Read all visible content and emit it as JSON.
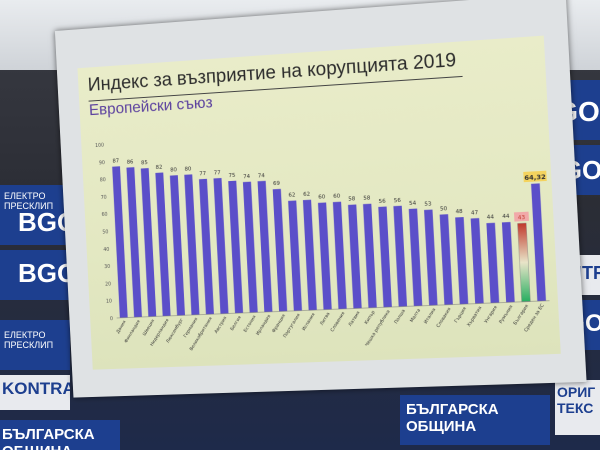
{
  "slide": {
    "title": "Индекс за възприятие на корупцията 2019",
    "subtitle": "Европейски съюз"
  },
  "backdrop": {
    "logo_text": "BGO",
    "labels": [
      "ЕЛЕКТРО ПРЕСКЛИП",
      "KONTRA",
      "БЪЛГАРСКА ОБЩИНА",
      "ОРИГ ТЕКС"
    ]
  },
  "chart_data": {
    "type": "bar",
    "categories": [
      "Дания",
      "Финландия",
      "Швеция",
      "Нидерландия",
      "Люксембург",
      "Германия",
      "Великобритания",
      "Австрия",
      "Белгия",
      "Естония",
      "Ирландия",
      "Франция",
      "Португалия",
      "Испания",
      "Литва",
      "Словения",
      "Латвия",
      "Кипър",
      "Чешка република",
      "Полша",
      "Малта",
      "Италия",
      "Словакия",
      "Гърция",
      "Хърватия",
      "Унгария",
      "Румъния",
      "България",
      "Среден за ЕС"
    ],
    "values": [
      87,
      86,
      85,
      82,
      80,
      80,
      77,
      77,
      75,
      74,
      74,
      69,
      62,
      62,
      60,
      60,
      58,
      58,
      56,
      56,
      54,
      53,
      50,
      48,
      47,
      44,
      44,
      43,
      64.32
    ],
    "value_labels": [
      "87",
      "86",
      "85",
      "82",
      "80",
      "80",
      "77",
      "77",
      "75",
      "74",
      "74",
      "69",
      "62",
      "62",
      "60",
      "60",
      "58",
      "58",
      "56",
      "56",
      "54",
      "53",
      "50",
      "48",
      "47",
      "44",
      "44",
      "43",
      "64,32"
    ],
    "yticks": [
      "0",
      "10",
      "20",
      "30",
      "40",
      "50",
      "60",
      "70",
      "80",
      "90",
      "100"
    ],
    "ylim": [
      0,
      100
    ],
    "bar_color": "#5b4fc9",
    "highlight_index": 27,
    "highlight_colors": [
      "#c0392b",
      "#e8e4c8",
      "#27ae60"
    ],
    "title": "Индекс за възприятие на корупцията 2019",
    "subtitle": "Европейски съюз"
  }
}
